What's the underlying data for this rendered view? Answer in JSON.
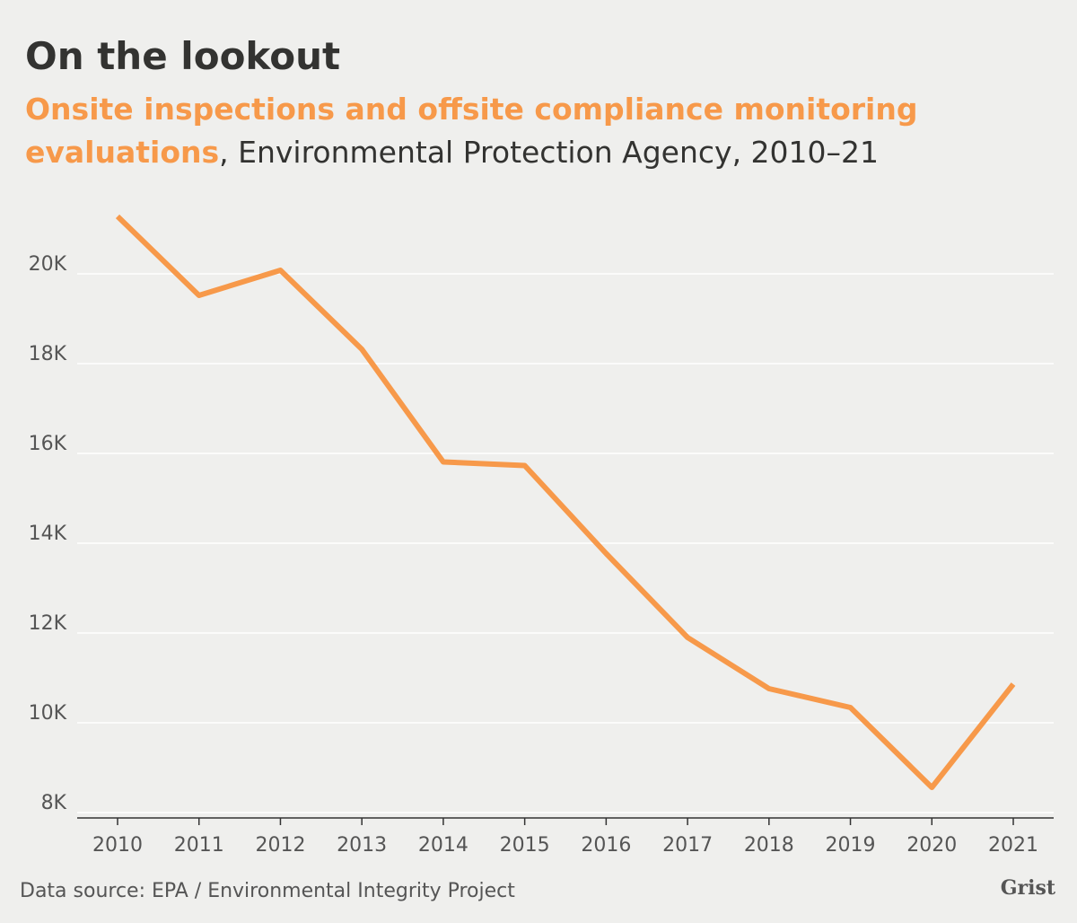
{
  "chart_data": {
    "type": "line",
    "title": "On the lookout",
    "subtitle_highlight": "Onsite inspections and offsite compliance monitoring evaluations",
    "subtitle_rest": ", Environmental Protection Agency, 2010–21",
    "source": "Data source: EPA / Environmental Integrity Project",
    "logo": "Grist",
    "categories": [
      "2010",
      "2011",
      "2012",
      "2013",
      "2014",
      "2015",
      "2016",
      "2017",
      "2018",
      "2019",
      "2020",
      "2021"
    ],
    "values": [
      21280,
      19520,
      20080,
      18320,
      15810,
      15730,
      13770,
      11900,
      10760,
      10340,
      8560,
      10860
    ],
    "color": "#f7994a",
    "ylim": [
      7880,
      21800
    ],
    "yticks": [
      {
        "value": 8000,
        "label": "8K"
      },
      {
        "value": 10000,
        "label": "10K"
      },
      {
        "value": 12000,
        "label": "12K"
      },
      {
        "value": 14000,
        "label": "14K"
      },
      {
        "value": 16000,
        "label": "16K"
      },
      {
        "value": 18000,
        "label": "18K"
      },
      {
        "value": 20000,
        "label": "20K"
      }
    ],
    "grid": true
  }
}
